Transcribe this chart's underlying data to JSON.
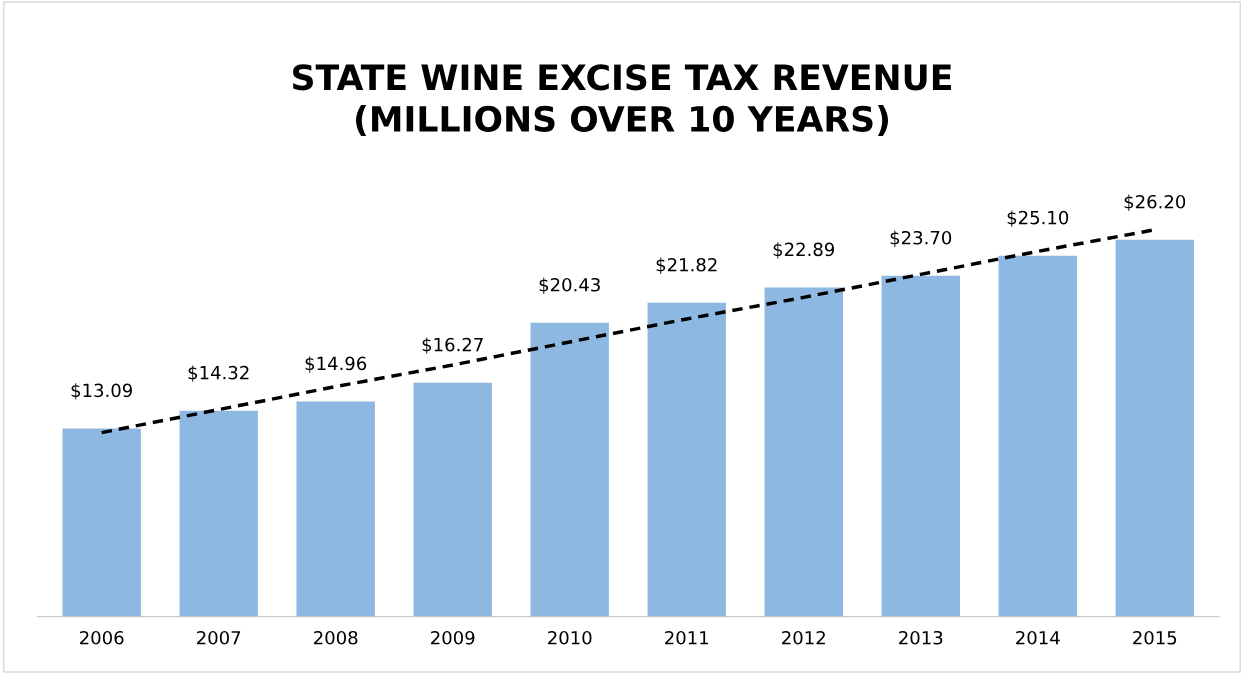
{
  "chart_data": {
    "type": "bar",
    "title": "STATE WINE EXCISE TAX REVENUE\n(MILLIONS OVER 10 YEARS)",
    "categories": [
      "2006",
      "2007",
      "2008",
      "2009",
      "2010",
      "2011",
      "2012",
      "2013",
      "2014",
      "2015"
    ],
    "series": [
      {
        "color": "#8db8e2",
        "values": [
          13.09,
          14.32,
          14.96,
          16.27,
          20.43,
          21.82,
          22.89,
          23.7,
          25.1,
          26.2
        ],
        "value_labels": [
          "$13.09",
          "$14.32",
          "$14.96",
          "$16.27",
          "$20.43",
          "$21.82",
          "$22.89",
          "$23.70",
          "$25.10",
          "$26.20"
        ]
      },
      {
        "type": "line",
        "color": "#000000",
        "line_style": "dashed",
        "values": [
          12.8,
          14.4,
          16.0,
          17.5,
          19.1,
          20.7,
          22.2,
          23.8,
          25.4,
          26.9
        ]
      }
    ],
    "grid": false
  }
}
